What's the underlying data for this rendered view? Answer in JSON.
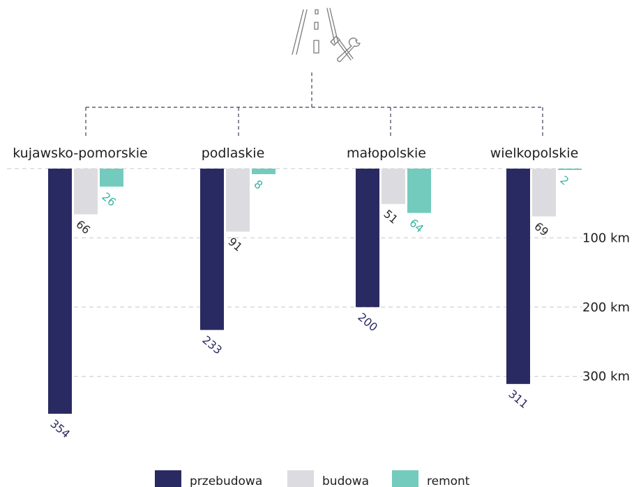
{
  "colors": {
    "przebudowa": "#2a2a62",
    "budowa": "#dcdce0",
    "remont": "#72cbbd",
    "value_dark": "#2a2a62",
    "value_gray": "#2b2b2b",
    "value_teal": "#3bb5a3",
    "grid": "#c8c8c8",
    "connector": "#3a3f5c",
    "icon": "#7a7a7a"
  },
  "icon": {
    "name": "road-repair-tools-icon"
  },
  "chart_data": {
    "type": "bar",
    "orientation": "downward",
    "categories": [
      "kujawsko-pomorskie",
      "podlaskie",
      "małopolskie",
      "wielkopolskie"
    ],
    "series": [
      {
        "name": "przebudowa",
        "values": [
          354,
          233,
          200,
          311
        ]
      },
      {
        "name": "budowa",
        "values": [
          66,
          91,
          51,
          69
        ]
      },
      {
        "name": "remont",
        "values": [
          26,
          8,
          64,
          2
        ]
      }
    ],
    "value_labels": {
      "przebudowa": [
        "354",
        "233",
        "200",
        "311"
      ],
      "budowa": [
        "66",
        "91",
        "51",
        "69"
      ],
      "remont": [
        "26",
        "8",
        "64",
        "2"
      ]
    },
    "yticks": [
      {
        "value": 100,
        "label": "100 km"
      },
      {
        "value": 200,
        "label": "200 km"
      },
      {
        "value": 300,
        "label": "300 km"
      }
    ],
    "ylim": [
      0,
      360
    ],
    "grid": true,
    "legend_position": "bottom-center"
  }
}
